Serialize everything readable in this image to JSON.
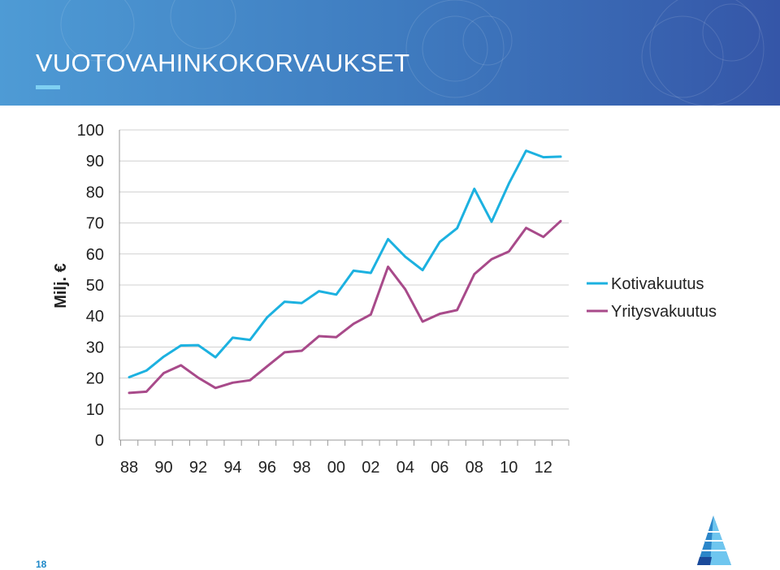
{
  "slide": {
    "title": "VUOTOVAHINKOKORVAUKSET",
    "page_number": "18"
  },
  "colors": {
    "header_start": "#4e9bd5",
    "header_end": "#3556a8",
    "series_kotivakuutus": "#1cb1e0",
    "series_yritysvakuutus": "#a84a8a"
  },
  "icons": {
    "logo": "triangle-logo-icon"
  },
  "chart_data": {
    "type": "line",
    "title": "",
    "xlabel": "",
    "ylabel": "Milj. €",
    "ylim": [
      0,
      100
    ],
    "yticks": [
      0,
      10,
      20,
      30,
      40,
      50,
      60,
      70,
      80,
      90,
      100
    ],
    "x_tick_labels": [
      "88",
      "90",
      "92",
      "94",
      "96",
      "98",
      "00",
      "02",
      "04",
      "06",
      "08",
      "10",
      "12"
    ],
    "x": [
      1988,
      1989,
      1990,
      1991,
      1992,
      1993,
      1994,
      1995,
      1996,
      1997,
      1998,
      1999,
      2000,
      2001,
      2002,
      2003,
      2004,
      2005,
      2006,
      2007,
      2008,
      2009,
      2010,
      2011,
      2012,
      2013
    ],
    "grid": "horizontal",
    "legend_position": "right",
    "series": [
      {
        "name": "Kotivakuutus",
        "values": [
          20.3,
          22.4,
          26.9,
          30.5,
          30.6,
          26.7,
          33.0,
          32.3,
          39.6,
          44.6,
          44.2,
          48.0,
          46.9,
          54.6,
          53.9,
          64.8,
          59.1,
          54.8,
          63.9,
          68.3,
          81.0,
          70.4,
          82.7,
          93.3,
          91.2,
          91.4
        ]
      },
      {
        "name": "Yritysvakuutus",
        "values": [
          15.2,
          15.6,
          21.6,
          24.1,
          20.1,
          16.8,
          18.5,
          19.3,
          23.8,
          28.3,
          28.8,
          33.5,
          33.2,
          37.5,
          40.5,
          55.9,
          48.6,
          38.2,
          40.7,
          41.9,
          53.5,
          58.3,
          60.8,
          68.4,
          65.5,
          70.6
        ]
      }
    ]
  }
}
